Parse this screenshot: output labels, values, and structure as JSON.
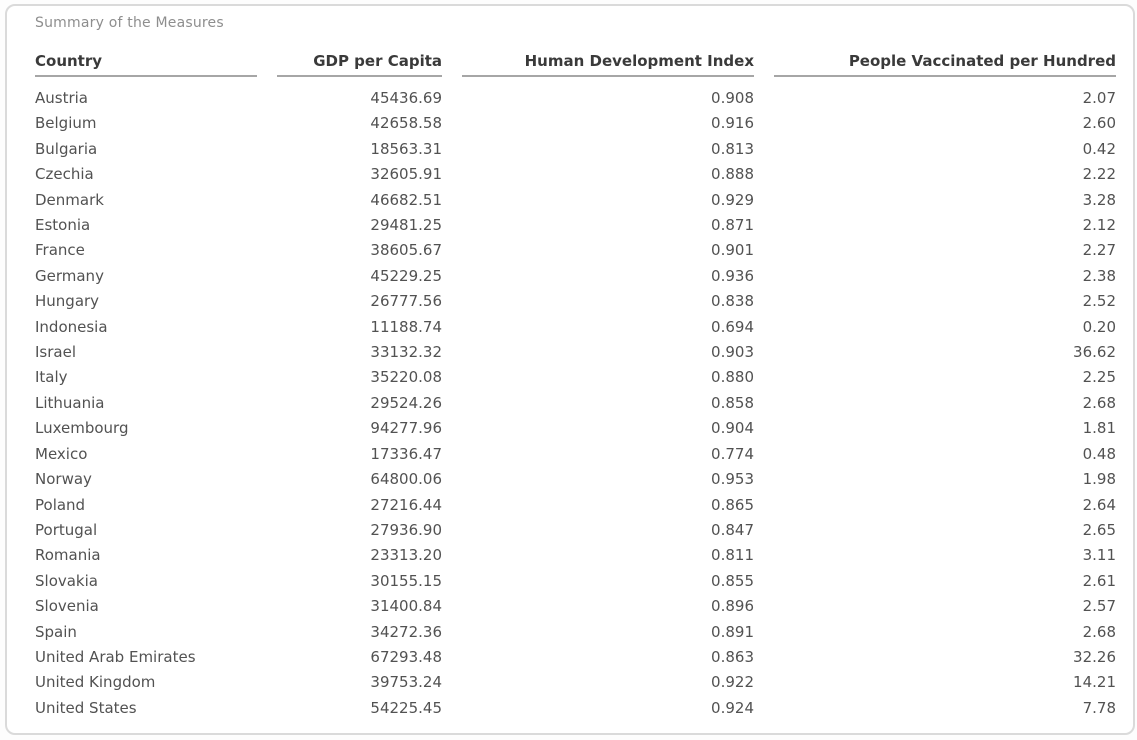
{
  "card": {
    "title_label": "Summary of the Measures"
  },
  "style": {
    "header_text_color": "#3a3a3a",
    "body_text_color": "#525252",
    "title_color": "#8e8e8e",
    "underline_color": "#a6a6a6",
    "card_border_color": "#dadada"
  },
  "chart_data": {
    "type": "table",
    "title": "Summary of the Measures",
    "columns": [
      "Country",
      "GDP per Capita",
      "Human Development Index",
      "People Vaccinated per Hundred"
    ],
    "aligns": [
      "left",
      "right",
      "right",
      "right"
    ],
    "decimals": [
      null,
      2,
      3,
      2
    ],
    "rows": [
      [
        "Austria",
        45436.69,
        0.908,
        2.07
      ],
      [
        "Belgium",
        42658.58,
        0.916,
        2.6
      ],
      [
        "Bulgaria",
        18563.31,
        0.813,
        0.42
      ],
      [
        "Czechia",
        32605.91,
        0.888,
        2.22
      ],
      [
        "Denmark",
        46682.51,
        0.929,
        3.28
      ],
      [
        "Estonia",
        29481.25,
        0.871,
        2.12
      ],
      [
        "France",
        38605.67,
        0.901,
        2.27
      ],
      [
        "Germany",
        45229.25,
        0.936,
        2.38
      ],
      [
        "Hungary",
        26777.56,
        0.838,
        2.52
      ],
      [
        "Indonesia",
        11188.74,
        0.694,
        0.2
      ],
      [
        "Israel",
        33132.32,
        0.903,
        36.62
      ],
      [
        "Italy",
        35220.08,
        0.88,
        2.25
      ],
      [
        "Lithuania",
        29524.26,
        0.858,
        2.68
      ],
      [
        "Luxembourg",
        94277.96,
        0.904,
        1.81
      ],
      [
        "Mexico",
        17336.47,
        0.774,
        0.48
      ],
      [
        "Norway",
        64800.06,
        0.953,
        1.98
      ],
      [
        "Poland",
        27216.44,
        0.865,
        2.64
      ],
      [
        "Portugal",
        27936.9,
        0.847,
        2.65
      ],
      [
        "Romania",
        23313.2,
        0.811,
        3.11
      ],
      [
        "Slovakia",
        30155.15,
        0.855,
        2.61
      ],
      [
        "Slovenia",
        31400.84,
        0.896,
        2.57
      ],
      [
        "Spain",
        34272.36,
        0.891,
        2.68
      ],
      [
        "United Arab Emirates",
        67293.48,
        0.863,
        32.26
      ],
      [
        "United Kingdom",
        39753.24,
        0.922,
        14.21
      ],
      [
        "United States",
        54225.45,
        0.924,
        7.78
      ]
    ]
  }
}
